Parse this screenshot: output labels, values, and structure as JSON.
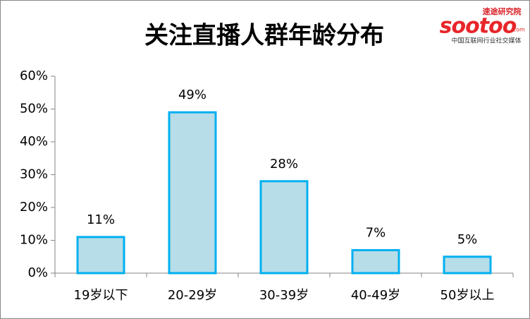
{
  "chart_data": {
    "type": "bar",
    "title": "关注直播人群年龄分布",
    "categories": [
      "19岁以下",
      "20-29岁",
      "30-39岁",
      "40-49岁",
      "50岁以上"
    ],
    "values": [
      11,
      49,
      28,
      7,
      5
    ],
    "value_labels": [
      "11%",
      "49%",
      "28%",
      "7%",
      "5%"
    ],
    "color": "#b7dde8",
    "edge_color": "#00b0f0",
    "ylim": [
      0,
      60
    ],
    "yticks": [
      {
        "value": 0,
        "label": "0%"
      },
      {
        "value": 10,
        "label": "10%"
      },
      {
        "value": 20,
        "label": "20%"
      },
      {
        "value": 30,
        "label": "30%"
      },
      {
        "value": 40,
        "label": "40%"
      },
      {
        "value": 50,
        "label": "50%"
      },
      {
        "value": 60,
        "label": "60%"
      }
    ],
    "grid": false
  },
  "logo": {
    "brand": "sootoo",
    "domain": ".com",
    "name": "速途研究院",
    "tagline": "中国互联网行业社交媒体"
  }
}
